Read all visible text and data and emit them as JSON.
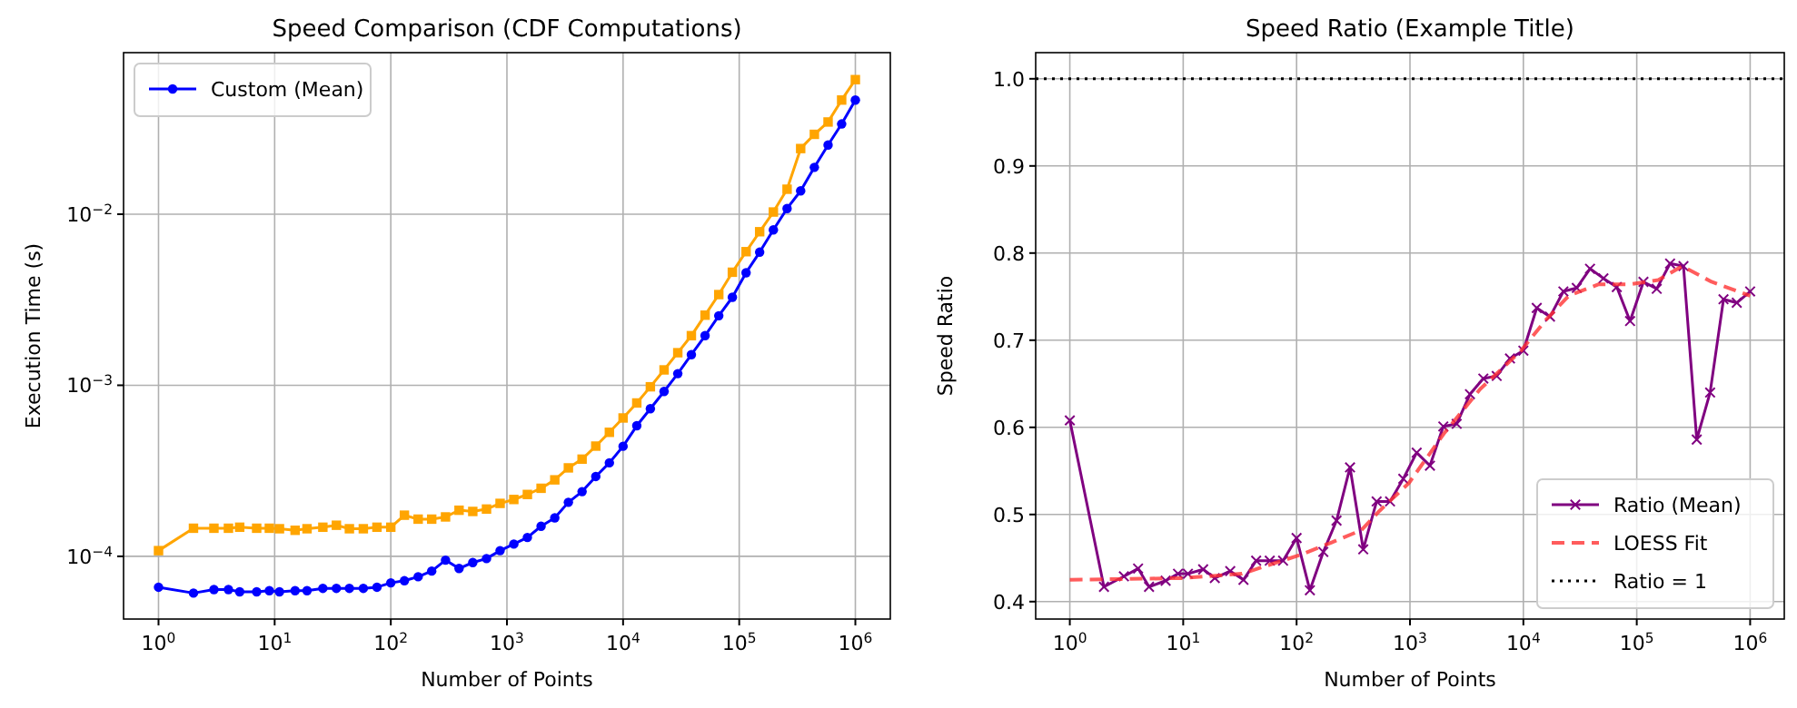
{
  "chart_data": [
    {
      "type": "line",
      "title": "Speed Comparison (CDF Computations)",
      "xlabel": "Number of Points",
      "ylabel": "Execution Time (s)",
      "log": "xy",
      "grid": true,
      "legend": "top left",
      "xlim": [
        0.5,
        2000000
      ],
      "ylim": [
        4.3e-05,
        0.088
      ],
      "xticks": [
        {
          "value": 1,
          "label": "10$^{0}$"
        },
        {
          "value": 10,
          "label": "10$^{1}$"
        },
        {
          "value": 100,
          "label": "10$^{2}$"
        },
        {
          "value": 1000,
          "label": "10$^{3}$"
        },
        {
          "value": 10000,
          "label": "10$^{4}$"
        },
        {
          "value": 100000,
          "label": "10$^{5}$"
        },
        {
          "value": 1000000,
          "label": "10$^{6}$"
        }
      ],
      "yticks": [
        {
          "value": 0.0001,
          "label": "10$^{−4}$"
        },
        {
          "value": 0.001,
          "label": "10$^{−3}$"
        },
        {
          "value": 0.01,
          "label": "10$^{−2}$"
        }
      ],
      "x": [
        1,
        2,
        3,
        4,
        5,
        7,
        9,
        11,
        15,
        19,
        26,
        34,
        44,
        58,
        76,
        100,
        131,
        172,
        225,
        296,
        387,
        508,
        667,
        873,
        1146,
        1500,
        1968,
        2582,
        3381,
        4436,
        5821,
        7621,
        10000,
        13122,
        17179,
        22542,
        29580,
        38726,
        50816,
        66681,
        87297,
        114551,
        149968,
        196789,
        258226,
        338065,
        443609,
        582103,
        762079,
        1000000
      ],
      "series": [
        {
          "name": "Custom (Mean)",
          "color": "#0000ff",
          "marker": "circle",
          "values": [
            6.6e-05,
            6.1e-05,
            6.4e-05,
            6.4e-05,
            6.2e-05,
            6.2e-05,
            6.3e-05,
            6.2e-05,
            6.3e-05,
            6.3e-05,
            6.5e-05,
            6.5e-05,
            6.5e-05,
            6.5e-05,
            6.6e-05,
            7e-05,
            7.2e-05,
            7.6e-05,
            8.2e-05,
            9.5e-05,
            8.5e-05,
            9.2e-05,
            9.7e-05,
            0.000108,
            0.000118,
            0.000129,
            0.00015,
            0.000168,
            0.000207,
            0.000239,
            0.000293,
            0.000352,
            0.00044,
            0.00058,
            0.00073,
            0.00092,
            0.00117,
            0.00151,
            0.00195,
            0.00255,
            0.00327,
            0.00455,
            0.006,
            0.0081,
            0.0108,
            0.0137,
            0.0188,
            0.0254,
            0.0337,
            0.0465
          ]
        },
        {
          "color": "#ffa500",
          "marker": "square",
          "values": [
            0.000108,
            0.000146,
            0.000146,
            0.000146,
            0.000148,
            0.000146,
            0.000146,
            0.000145,
            0.000142,
            0.000145,
            0.000148,
            0.000152,
            0.000145,
            0.000145,
            0.000148,
            0.000148,
            0.000174,
            0.000165,
            0.000165,
            0.00017,
            0.000186,
            0.000183,
            0.000189,
            0.000204,
            0.000215,
            0.00023,
            0.00025,
            0.00028,
            0.000329,
            0.00037,
            0.000441,
            0.000531,
            0.000644,
            0.000788,
            0.00098,
            0.00123,
            0.00155,
            0.00195,
            0.00257,
            0.00339,
            0.00458,
            0.00604,
            0.0079,
            0.0103,
            0.014,
            0.0242,
            0.0293,
            0.0346,
            0.0465,
            0.0612
          ]
        }
      ]
    },
    {
      "type": "line",
      "title": "Speed Ratio (Example Title)",
      "xlabel": "Number of Points",
      "ylabel": "Speed Ratio",
      "log": "x",
      "grid": true,
      "legend": "bottom right",
      "xlim": [
        0.5,
        2000000
      ],
      "ylim": [
        0.38,
        1.03
      ],
      "xticks": [
        {
          "value": 1,
          "label": "10$^{0}$"
        },
        {
          "value": 10,
          "label": "10$^{1}$"
        },
        {
          "value": 100,
          "label": "10$^{2}$"
        },
        {
          "value": 1000,
          "label": "10$^{3}$"
        },
        {
          "value": 10000,
          "label": "10$^{4}$"
        },
        {
          "value": 100000,
          "label": "10$^{5}$"
        },
        {
          "value": 1000000,
          "label": "10$^{6}$"
        }
      ],
      "yticks": [
        0.4,
        0.5,
        0.6,
        0.7,
        0.8,
        0.9,
        {
          "value": 1,
          "label": "1.0"
        }
      ],
      "x": [
        1,
        2,
        3,
        4,
        5,
        7,
        9,
        11,
        15,
        19,
        26,
        34,
        44,
        58,
        76,
        100,
        131,
        172,
        225,
        296,
        387,
        508,
        667,
        873,
        1146,
        1500,
        1968,
        2582,
        3381,
        4436,
        5821,
        7621,
        10000,
        13122,
        17179,
        22542,
        29580,
        38726,
        50816,
        66681,
        87297,
        114551,
        149968,
        196789,
        258226,
        338065,
        443609,
        582103,
        762079,
        1000000
      ],
      "series": [
        {
          "name": "Ratio (Mean)",
          "color": "#800080",
          "marker": "cross",
          "values": [
            0.608,
            0.417,
            0.429,
            0.438,
            0.417,
            0.424,
            0.432,
            0.432,
            0.437,
            0.427,
            0.435,
            0.425,
            0.447,
            0.447,
            0.447,
            0.473,
            0.413,
            0.457,
            0.493,
            0.554,
            0.46,
            0.515,
            0.515,
            0.541,
            0.571,
            0.556,
            0.601,
            0.604,
            0.638,
            0.656,
            0.659,
            0.679,
            0.688,
            0.737,
            0.727,
            0.756,
            0.76,
            0.782,
            0.771,
            0.761,
            0.722,
            0.767,
            0.759,
            0.788,
            0.785,
            0.586,
            0.64,
            0.747,
            0.743,
            0.756
          ]
        },
        {
          "name": "LOESS Fit",
          "color": "#ff3333",
          "marker": "none",
          "line_style": "dashed",
          "x": [
            1,
            10,
            33,
            110,
            204,
            372,
            537,
            977,
            1995,
            4169,
            9550,
            15488,
            25119,
            45709,
            85114,
            154882,
            251189,
            457088,
            1000000
          ],
          "values": [
            0.425,
            0.427,
            0.432,
            0.454,
            0.468,
            0.482,
            0.504,
            0.536,
            0.593,
            0.644,
            0.688,
            0.722,
            0.751,
            0.764,
            0.764,
            0.769,
            0.785,
            0.767,
            0.751
          ]
        }
      ],
      "ref_lines": [
        {
          "axis": "y",
          "value": 1.0,
          "label": "Ratio = 1",
          "color": "#000000",
          "line_style": "dotted"
        }
      ]
    }
  ]
}
